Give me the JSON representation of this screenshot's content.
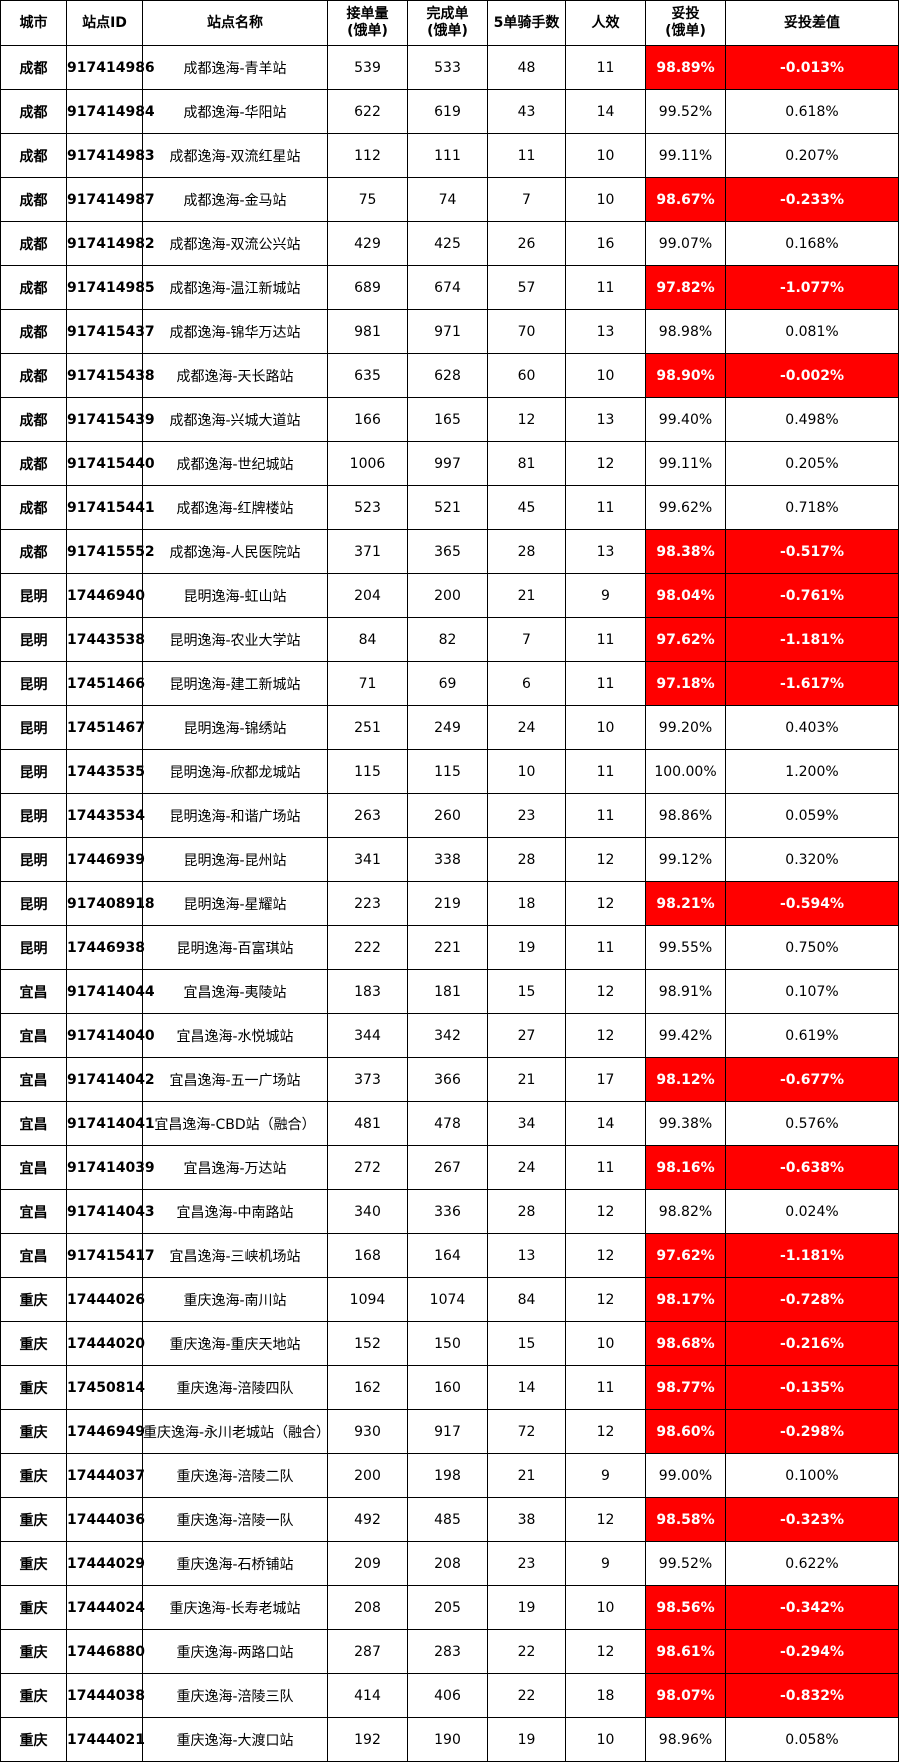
{
  "headers": [
    "城市",
    "站点ID",
    "站点名称",
    "接单量\n(饿单)",
    "完成单\n(饿单)",
    "5单骑手数",
    "人效",
    "妥投\n(饿单)",
    "妥投差值"
  ],
  "colors": {
    "highlight_bg": "#ff0000",
    "highlight_text": "#ffffff",
    "border": "#000000"
  },
  "rows": [
    {
      "city": "成都",
      "id": "917414986",
      "name": "成都逸海-青羊站",
      "accepted": "539",
      "completed": "533",
      "riders": "48",
      "efficiency": "11",
      "rate": "98.89%",
      "diff": "-0.013%",
      "hl": true
    },
    {
      "city": "成都",
      "id": "917414984",
      "name": "成都逸海-华阳站",
      "accepted": "622",
      "completed": "619",
      "riders": "43",
      "efficiency": "14",
      "rate": "99.52%",
      "diff": "0.618%",
      "hl": false
    },
    {
      "city": "成都",
      "id": "917414983",
      "name": "成都逸海-双流红星站",
      "accepted": "112",
      "completed": "111",
      "riders": "11",
      "efficiency": "10",
      "rate": "99.11%",
      "diff": "0.207%",
      "hl": false
    },
    {
      "city": "成都",
      "id": "917414987",
      "name": "成都逸海-金马站",
      "accepted": "75",
      "completed": "74",
      "riders": "7",
      "efficiency": "10",
      "rate": "98.67%",
      "diff": "-0.233%",
      "hl": true
    },
    {
      "city": "成都",
      "id": "917414982",
      "name": "成都逸海-双流公兴站",
      "accepted": "429",
      "completed": "425",
      "riders": "26",
      "efficiency": "16",
      "rate": "99.07%",
      "diff": "0.168%",
      "hl": false
    },
    {
      "city": "成都",
      "id": "917414985",
      "name": "成都逸海-温江新城站",
      "accepted": "689",
      "completed": "674",
      "riders": "57",
      "efficiency": "11",
      "rate": "97.82%",
      "diff": "-1.077%",
      "hl": true
    },
    {
      "city": "成都",
      "id": "917415437",
      "name": "成都逸海-锦华万达站",
      "accepted": "981",
      "completed": "971",
      "riders": "70",
      "efficiency": "13",
      "rate": "98.98%",
      "diff": "0.081%",
      "hl": false
    },
    {
      "city": "成都",
      "id": "917415438",
      "name": "成都逸海-天长路站",
      "accepted": "635",
      "completed": "628",
      "riders": "60",
      "efficiency": "10",
      "rate": "98.90%",
      "diff": "-0.002%",
      "hl": true
    },
    {
      "city": "成都",
      "id": "917415439",
      "name": "成都逸海-兴城大道站",
      "accepted": "166",
      "completed": "165",
      "riders": "12",
      "efficiency": "13",
      "rate": "99.40%",
      "diff": "0.498%",
      "hl": false
    },
    {
      "city": "成都",
      "id": "917415440",
      "name": "成都逸海-世纪城站",
      "accepted": "1006",
      "completed": "997",
      "riders": "81",
      "efficiency": "12",
      "rate": "99.11%",
      "diff": "0.205%",
      "hl": false
    },
    {
      "city": "成都",
      "id": "917415441",
      "name": "成都逸海-红牌楼站",
      "accepted": "523",
      "completed": "521",
      "riders": "45",
      "efficiency": "11",
      "rate": "99.62%",
      "diff": "0.718%",
      "hl": false
    },
    {
      "city": "成都",
      "id": "917415552",
      "name": "成都逸海-人民医院站",
      "accepted": "371",
      "completed": "365",
      "riders": "28",
      "efficiency": "13",
      "rate": "98.38%",
      "diff": "-0.517%",
      "hl": true
    },
    {
      "city": "昆明",
      "id": "17446940",
      "name": "昆明逸海-虹山站",
      "accepted": "204",
      "completed": "200",
      "riders": "21",
      "efficiency": "9",
      "rate": "98.04%",
      "diff": "-0.761%",
      "hl": true
    },
    {
      "city": "昆明",
      "id": "17443538",
      "name": "昆明逸海-农业大学站",
      "accepted": "84",
      "completed": "82",
      "riders": "7",
      "efficiency": "11",
      "rate": "97.62%",
      "diff": "-1.181%",
      "hl": true
    },
    {
      "city": "昆明",
      "id": "17451466",
      "name": "昆明逸海-建工新城站",
      "accepted": "71",
      "completed": "69",
      "riders": "6",
      "efficiency": "11",
      "rate": "97.18%",
      "diff": "-1.617%",
      "hl": true
    },
    {
      "city": "昆明",
      "id": "17451467",
      "name": "昆明逸海-锦绣站",
      "accepted": "251",
      "completed": "249",
      "riders": "24",
      "efficiency": "10",
      "rate": "99.20%",
      "diff": "0.403%",
      "hl": false
    },
    {
      "city": "昆明",
      "id": "17443535",
      "name": "昆明逸海-欣都龙城站",
      "accepted": "115",
      "completed": "115",
      "riders": "10",
      "efficiency": "11",
      "rate": "100.00%",
      "diff": "1.200%",
      "hl": false
    },
    {
      "city": "昆明",
      "id": "17443534",
      "name": "昆明逸海-和谐广场站",
      "accepted": "263",
      "completed": "260",
      "riders": "23",
      "efficiency": "11",
      "rate": "98.86%",
      "diff": "0.059%",
      "hl": false
    },
    {
      "city": "昆明",
      "id": "17446939",
      "name": "昆明逸海-昆州站",
      "accepted": "341",
      "completed": "338",
      "riders": "28",
      "efficiency": "12",
      "rate": "99.12%",
      "diff": "0.320%",
      "hl": false
    },
    {
      "city": "昆明",
      "id": "917408918",
      "name": "昆明逸海-星耀站",
      "accepted": "223",
      "completed": "219",
      "riders": "18",
      "efficiency": "12",
      "rate": "98.21%",
      "diff": "-0.594%",
      "hl": true
    },
    {
      "city": "昆明",
      "id": "17446938",
      "name": "昆明逸海-百富琪站",
      "accepted": "222",
      "completed": "221",
      "riders": "19",
      "efficiency": "11",
      "rate": "99.55%",
      "diff": "0.750%",
      "hl": false
    },
    {
      "city": "宜昌",
      "id": "917414044",
      "name": "宜昌逸海-夷陵站",
      "accepted": "183",
      "completed": "181",
      "riders": "15",
      "efficiency": "12",
      "rate": "98.91%",
      "diff": "0.107%",
      "hl": false
    },
    {
      "city": "宜昌",
      "id": "917414040",
      "name": "宜昌逸海-水悦城站",
      "accepted": "344",
      "completed": "342",
      "riders": "27",
      "efficiency": "12",
      "rate": "99.42%",
      "diff": "0.619%",
      "hl": false
    },
    {
      "city": "宜昌",
      "id": "917414042",
      "name": "宜昌逸海-五一广场站",
      "accepted": "373",
      "completed": "366",
      "riders": "21",
      "efficiency": "17",
      "rate": "98.12%",
      "diff": "-0.677%",
      "hl": true
    },
    {
      "city": "宜昌",
      "id": "917414041",
      "name": "宜昌逸海-CBD站（融合）",
      "accepted": "481",
      "completed": "478",
      "riders": "34",
      "efficiency": "14",
      "rate": "99.38%",
      "diff": "0.576%",
      "hl": false
    },
    {
      "city": "宜昌",
      "id": "917414039",
      "name": "宜昌逸海-万达站",
      "accepted": "272",
      "completed": "267",
      "riders": "24",
      "efficiency": "11",
      "rate": "98.16%",
      "diff": "-0.638%",
      "hl": true
    },
    {
      "city": "宜昌",
      "id": "917414043",
      "name": "宜昌逸海-中南路站",
      "accepted": "340",
      "completed": "336",
      "riders": "28",
      "efficiency": "12",
      "rate": "98.82%",
      "diff": "0.024%",
      "hl": false
    },
    {
      "city": "宜昌",
      "id": "917415417",
      "name": "宜昌逸海-三峡机场站",
      "accepted": "168",
      "completed": "164",
      "riders": "13",
      "efficiency": "12",
      "rate": "97.62%",
      "diff": "-1.181%",
      "hl": true
    },
    {
      "city": "重庆",
      "id": "17444026",
      "name": "重庆逸海-南川站",
      "accepted": "1094",
      "completed": "1074",
      "riders": "84",
      "efficiency": "12",
      "rate": "98.17%",
      "diff": "-0.728%",
      "hl": true
    },
    {
      "city": "重庆",
      "id": "17444020",
      "name": "重庆逸海-重庆天地站",
      "accepted": "152",
      "completed": "150",
      "riders": "15",
      "efficiency": "10",
      "rate": "98.68%",
      "diff": "-0.216%",
      "hl": true
    },
    {
      "city": "重庆",
      "id": "17450814",
      "name": "重庆逸海-涪陵四队",
      "accepted": "162",
      "completed": "160",
      "riders": "14",
      "efficiency": "11",
      "rate": "98.77%",
      "diff": "-0.135%",
      "hl": true
    },
    {
      "city": "重庆",
      "id": "17446949",
      "name": "重庆逸海-永川老城站（融合）",
      "accepted": "930",
      "completed": "917",
      "riders": "72",
      "efficiency": "12",
      "rate": "98.60%",
      "diff": "-0.298%",
      "hl": true
    },
    {
      "city": "重庆",
      "id": "17444037",
      "name": "重庆逸海-涪陵二队",
      "accepted": "200",
      "completed": "198",
      "riders": "21",
      "efficiency": "9",
      "rate": "99.00%",
      "diff": "0.100%",
      "hl": false
    },
    {
      "city": "重庆",
      "id": "17444036",
      "name": "重庆逸海-涪陵一队",
      "accepted": "492",
      "completed": "485",
      "riders": "38",
      "efficiency": "12",
      "rate": "98.58%",
      "diff": "-0.323%",
      "hl": true
    },
    {
      "city": "重庆",
      "id": "17444029",
      "name": "重庆逸海-石桥铺站",
      "accepted": "209",
      "completed": "208",
      "riders": "23",
      "efficiency": "9",
      "rate": "99.52%",
      "diff": "0.622%",
      "hl": false
    },
    {
      "city": "重庆",
      "id": "17444024",
      "name": "重庆逸海-长寿老城站",
      "accepted": "208",
      "completed": "205",
      "riders": "19",
      "efficiency": "10",
      "rate": "98.56%",
      "diff": "-0.342%",
      "hl": true
    },
    {
      "city": "重庆",
      "id": "17446880",
      "name": "重庆逸海-两路口站",
      "accepted": "287",
      "completed": "283",
      "riders": "22",
      "efficiency": "12",
      "rate": "98.61%",
      "diff": "-0.294%",
      "hl": true
    },
    {
      "city": "重庆",
      "id": "17444038",
      "name": "重庆逸海-涪陵三队",
      "accepted": "414",
      "completed": "406",
      "riders": "22",
      "efficiency": "18",
      "rate": "98.07%",
      "diff": "-0.832%",
      "hl": true
    },
    {
      "city": "重庆",
      "id": "17444021",
      "name": "重庆逸海-大渡口站",
      "accepted": "192",
      "completed": "190",
      "riders": "19",
      "efficiency": "10",
      "rate": "98.96%",
      "diff": "0.058%",
      "hl": false
    }
  ]
}
